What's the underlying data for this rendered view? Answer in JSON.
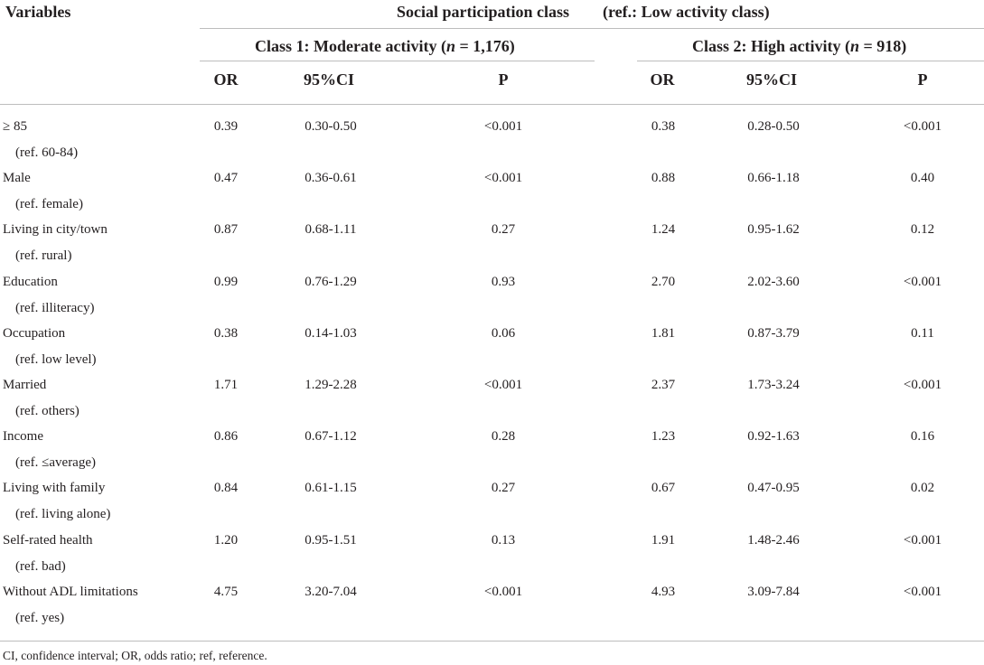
{
  "header": {
    "variables": "Variables",
    "group_title": "Social participation class",
    "group_ref": "(ref.: Low activity class)",
    "class1_prefix": "Class 1: Moderate activity (",
    "class1_n_var": "n",
    "class1_n_rest": " = 1,176)",
    "class2_prefix": "Class 2: High activity (",
    "class2_n_var": "n",
    "class2_n_rest": " = 918)",
    "cols": [
      "OR",
      "95%CI",
      "P",
      "OR",
      "95%CI",
      "P"
    ]
  },
  "rows": [
    {
      "label": "≥ 85",
      "ref": "(ref. 60-84)",
      "c1": {
        "or": "0.39",
        "ci": "0.30-0.50",
        "p": "<0.001"
      },
      "c2": {
        "or": "0.38",
        "ci": "0.28-0.50",
        "p": "<0.001"
      }
    },
    {
      "label": "Male",
      "ref": "(ref. female)",
      "c1": {
        "or": "0.47",
        "ci": "0.36-0.61",
        "p": "<0.001"
      },
      "c2": {
        "or": "0.88",
        "ci": "0.66-1.18",
        "p": "0.40"
      }
    },
    {
      "label": "Living in city/town",
      "ref": "(ref. rural)",
      "c1": {
        "or": "0.87",
        "ci": "0.68-1.11",
        "p": "0.27"
      },
      "c2": {
        "or": "1.24",
        "ci": "0.95-1.62",
        "p": "0.12"
      }
    },
    {
      "label": "Education",
      "ref": "(ref. illiteracy)",
      "c1": {
        "or": "0.99",
        "ci": "0.76-1.29",
        "p": "0.93"
      },
      "c2": {
        "or": "2.70",
        "ci": "2.02-3.60",
        "p": "<0.001"
      }
    },
    {
      "label": "Occupation",
      "ref": "(ref. low level)",
      "c1": {
        "or": "0.38",
        "ci": "0.14-1.03",
        "p": "0.06"
      },
      "c2": {
        "or": "1.81",
        "ci": "0.87-3.79",
        "p": "0.11"
      }
    },
    {
      "label": "Married",
      "ref": "(ref. others)",
      "c1": {
        "or": "1.71",
        "ci": "1.29-2.28",
        "p": "<0.001"
      },
      "c2": {
        "or": "2.37",
        "ci": "1.73-3.24",
        "p": "<0.001"
      }
    },
    {
      "label": "Income",
      "ref": "(ref. ≤average)",
      "c1": {
        "or": "0.86",
        "ci": "0.67-1.12",
        "p": "0.28"
      },
      "c2": {
        "or": "1.23",
        "ci": "0.92-1.63",
        "p": "0.16"
      }
    },
    {
      "label": "Living with family",
      "ref": "(ref. living alone)",
      "c1": {
        "or": "0.84",
        "ci": "0.61-1.15",
        "p": "0.27"
      },
      "c2": {
        "or": "0.67",
        "ci": "0.47-0.95",
        "p": "0.02"
      }
    },
    {
      "label": "Self-rated health",
      "ref": "(ref. bad)",
      "c1": {
        "or": "1.20",
        "ci": "0.95-1.51",
        "p": "0.13"
      },
      "c2": {
        "or": "1.91",
        "ci": "1.48-2.46",
        "p": "<0.001"
      }
    },
    {
      "label": "Without ADL limitations",
      "ref": "(ref. yes)",
      "c1": {
        "or": "4.75",
        "ci": "3.20-7.04",
        "p": "<0.001"
      },
      "c2": {
        "or": "4.93",
        "ci": "3.09-7.84",
        "p": "<0.001"
      }
    }
  ],
  "footnote": "CI, confidence interval; OR, odds ratio; ref, reference."
}
